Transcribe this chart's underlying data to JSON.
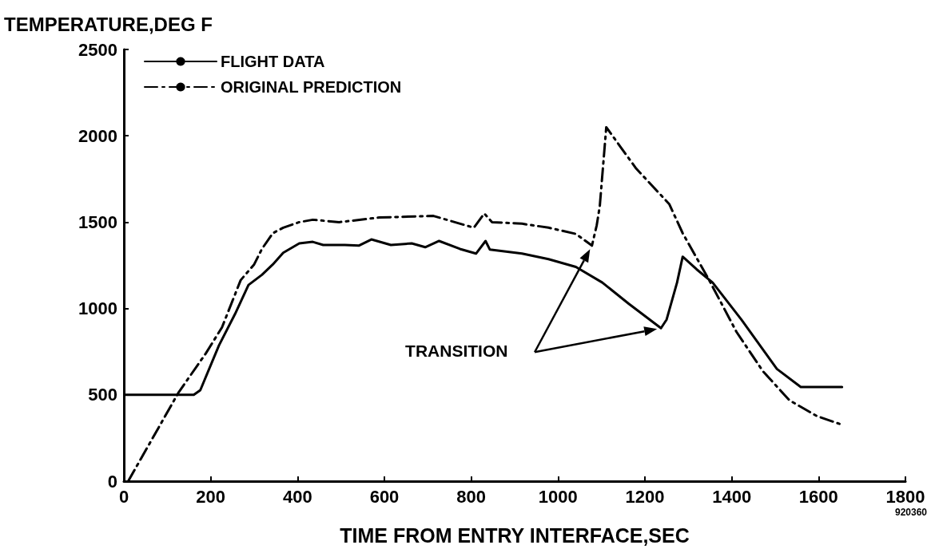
{
  "chart_data": {
    "type": "line",
    "xlabel": "TIME FROM ENTRY INTERFACE,SEC",
    "ylabel": "TEMPERATURE,DEG F",
    "xlim": [
      0,
      1800
    ],
    "xticks": [
      0,
      200,
      400,
      600,
      800,
      1000,
      1200,
      1400,
      1600,
      1800
    ],
    "ylim": [
      0,
      2500
    ],
    "yticks": [
      0,
      500,
      1000,
      1500,
      2000,
      2500
    ],
    "grid": false,
    "legend": "top left",
    "marker": "none",
    "series": [
      {
        "name": "FLIGHT DATA",
        "color": "#000000",
        "line_style": "solid",
        "x": [
          4,
          161,
          176,
          219,
          256,
          287,
          318,
          343,
          367,
          404,
          435,
          459,
          509,
          541,
          570,
          615,
          663,
          694,
          726,
          774,
          811,
          833,
          843,
          917,
          978,
          1041,
          1102,
          1163,
          1237,
          1250,
          1274,
          1287,
          1319,
          1356,
          1422,
          1504,
          1559,
          1654
        ],
        "values": [
          500,
          500,
          527,
          786,
          968,
          1136,
          1195,
          1255,
          1323,
          1377,
          1386,
          1368,
          1368,
          1364,
          1400,
          1368,
          1377,
          1355,
          1391,
          1345,
          1318,
          1391,
          1341,
          1318,
          1286,
          1241,
          1150,
          1027,
          886,
          936,
          1150,
          1300,
          1227,
          1150,
          936,
          650,
          545,
          545
        ]
      },
      {
        "name": "ORIGINAL PREDICTION",
        "color": "#000000",
        "line_style": "dashed",
        "x": [
          10,
          126,
          189,
          226,
          269,
          300,
          318,
          343,
          367,
          404,
          435,
          496,
          589,
          713,
          731,
          806,
          830,
          848,
          917,
          978,
          1041,
          1078,
          1089,
          1096,
          1111,
          1180,
          1256,
          1287,
          1348,
          1411,
          1472,
          1533,
          1596,
          1648
        ],
        "values": [
          0,
          514,
          741,
          891,
          1164,
          1255,
          1345,
          1436,
          1468,
          1500,
          1514,
          1500,
          1527,
          1536,
          1523,
          1468,
          1550,
          1500,
          1491,
          1468,
          1432,
          1364,
          1482,
          1591,
          2050,
          1810,
          1605,
          1436,
          1164,
          864,
          636,
          468,
          377,
          332
        ]
      }
    ],
    "annotations": [
      "TRANSITION",
      "920360"
    ]
  }
}
